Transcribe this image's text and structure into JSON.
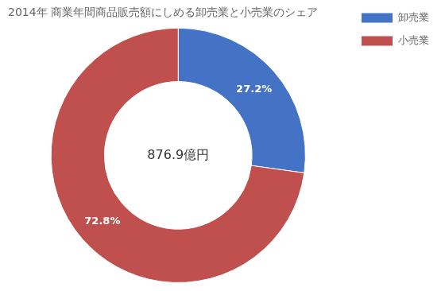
{
  "chart_data": {
    "type": "doughnut",
    "title": "2014年 商業年間商品販売額にしめる卸売業と小売業のシェア",
    "categories": [
      "卸売業",
      "小売業"
    ],
    "values": [
      27.2,
      72.8
    ],
    "value_labels": [
      "27.2%",
      "72.8%"
    ],
    "colors": [
      "#4472C4",
      "#C0504D"
    ],
    "data_labels": true,
    "annotation": "876.9億円",
    "legend": "right"
  }
}
